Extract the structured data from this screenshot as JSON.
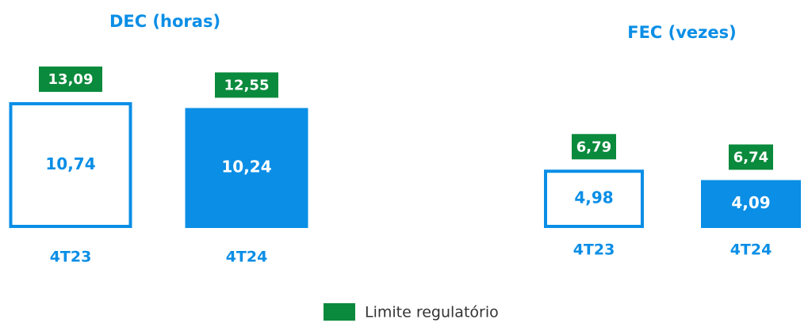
{
  "chart_data": [
    {
      "type": "bar",
      "title": "DEC (horas)",
      "categories": [
        "4T23",
        "4T24"
      ],
      "series": [
        {
          "color": "#0a8ee6",
          "values": [
            10.74,
            10.24
          ],
          "value_labels": [
            "10,74",
            "10,24"
          ]
        },
        {
          "name": "Limite regulatório",
          "color": "#0a8a3c",
          "values": [
            13.09,
            12.55
          ],
          "value_labels": [
            "13,09",
            "12,55"
          ]
        }
      ]
    },
    {
      "type": "bar",
      "title": "FEC (vezes)",
      "categories": [
        "4T23",
        "4T24"
      ],
      "series": [
        {
          "color": "#0a8ee6",
          "values": [
            4.98,
            4.09
          ],
          "value_labels": [
            "4,98",
            "4,09"
          ]
        },
        {
          "color": "#0a8a3c",
          "values": [
            6.79,
            6.74
          ],
          "value_labels": [
            "6,79",
            "6,74"
          ]
        }
      ]
    }
  ]
}
